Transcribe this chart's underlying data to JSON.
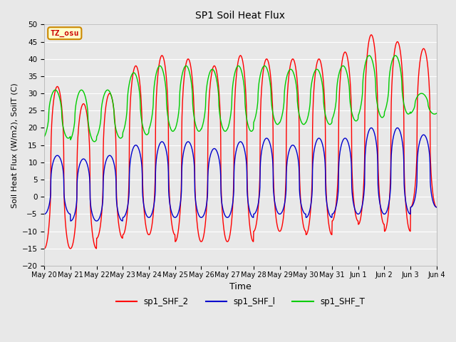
{
  "title": "SP1 Soil Heat Flux",
  "xlabel": "Time",
  "ylabel": "Soil Heat Flux (W/m2), SoilT (C)",
  "ylim": [
    -20,
    50
  ],
  "yticks": [
    -20,
    -15,
    -10,
    -5,
    0,
    5,
    10,
    15,
    20,
    25,
    30,
    35,
    40,
    45,
    50
  ],
  "bg_color": "#e8e8e8",
  "plot_bg_color": "#e8e8e8",
  "grid_color": "white",
  "legend_entries": [
    "sp1_SHF_2",
    "sp1_SHF_l",
    "sp1_SHF_T"
  ],
  "legend_colors": [
    "#ff0000",
    "#0000cc",
    "#00cc00"
  ],
  "tz_label": "TZ_osu",
  "tz_bg": "#ffffcc",
  "tz_border": "#cc8800",
  "tz_text_color": "#cc0000",
  "n_days": 15,
  "shf2_peaks": [
    32,
    27,
    30,
    38,
    41,
    40,
    38,
    41,
    40,
    40,
    40,
    42,
    47,
    45,
    43
  ],
  "shf2_troughs": [
    -15,
    -15,
    -12,
    -11,
    -11,
    -13,
    -13,
    -13,
    -10,
    -10,
    -11,
    -7,
    -8,
    -10,
    -3
  ],
  "shf1_peaks": [
    12,
    11,
    12,
    15,
    16,
    16,
    14,
    16,
    17,
    15,
    17,
    17,
    20,
    20,
    18
  ],
  "shf1_troughs": [
    -5,
    -7,
    -7,
    -6,
    -6,
    -6,
    -6,
    -6,
    -5,
    -5,
    -6,
    -5,
    -5,
    -5,
    -3
  ],
  "shft_peaks": [
    31,
    31,
    31,
    36,
    38,
    38,
    37,
    38,
    38,
    37,
    37,
    38,
    41,
    41,
    30
  ],
  "shft_troughs": [
    17,
    16,
    17,
    18,
    19,
    19,
    19,
    19,
    21,
    21,
    21,
    22,
    23,
    24,
    24
  ],
  "shft_phase_shift": 0.5,
  "wave_sharpness": 2.5,
  "tick_labels": [
    "May 20",
    "May 21",
    "May 22",
    "May 23",
    "May 24",
    "May 25",
    "May 26",
    "May 27",
    "May 28",
    "May 29",
    "May 30",
    "May 31",
    "Jun 1",
    "Jun 2",
    "Jun 3",
    "Jun 4"
  ]
}
